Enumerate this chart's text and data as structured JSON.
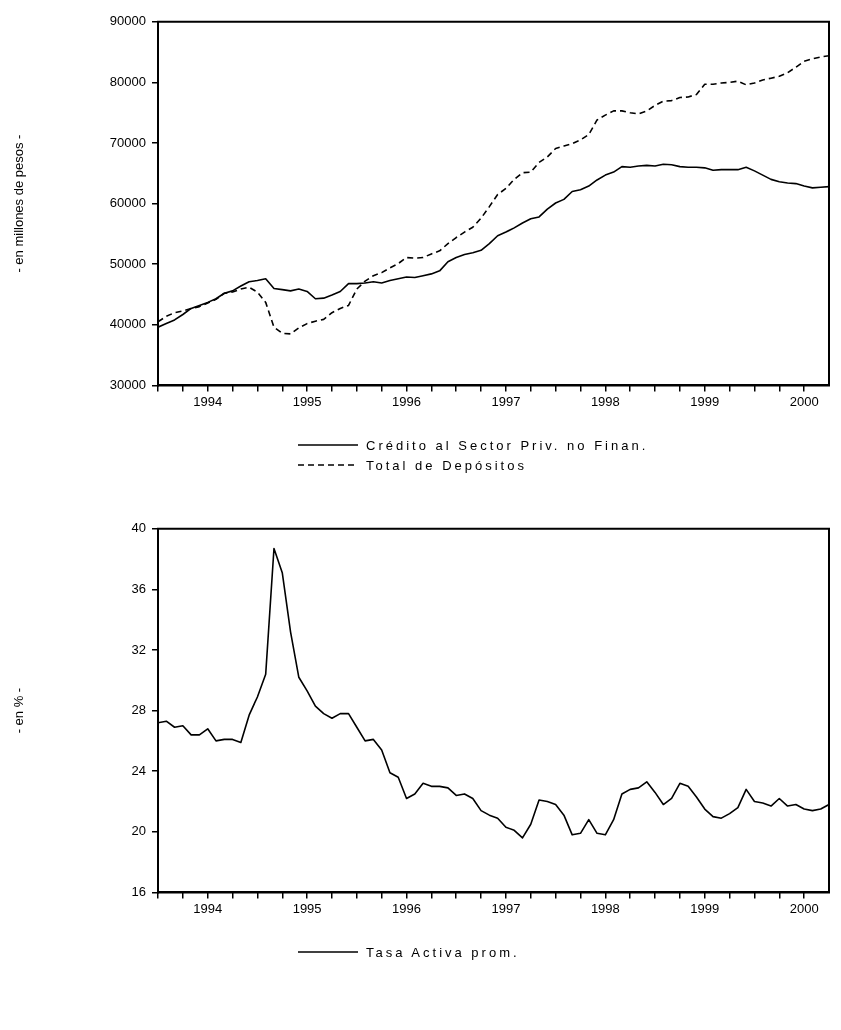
{
  "chart_data": [
    {
      "type": "line",
      "ylabel": "- en millones de pesos -",
      "legend": "bottom",
      "x": [
        "1994-01",
        "1994-02",
        "1994-03",
        "1994-04",
        "1994-05",
        "1994-06",
        "1994-07",
        "1994-08",
        "1994-09",
        "1994-10",
        "1994-11",
        "1994-12",
        "1995-01",
        "1995-02",
        "1995-03",
        "1995-04",
        "1995-05",
        "1995-06",
        "1995-07",
        "1995-08",
        "1995-09",
        "1995-10",
        "1995-11",
        "1995-12",
        "1996-01",
        "1996-02",
        "1996-03",
        "1996-04",
        "1996-05",
        "1996-06",
        "1996-07",
        "1996-08",
        "1996-09",
        "1996-10",
        "1996-11",
        "1996-12",
        "1997-01",
        "1997-02",
        "1997-03",
        "1997-04",
        "1997-05",
        "1997-06",
        "1997-07",
        "1997-08",
        "1997-09",
        "1997-10",
        "1997-11",
        "1997-12",
        "1998-01",
        "1998-02",
        "1998-03",
        "1998-04",
        "1998-05",
        "1998-06",
        "1998-07",
        "1998-08",
        "1998-09",
        "1998-10",
        "1998-11",
        "1998-12",
        "1999-01",
        "1999-02",
        "1999-03",
        "1999-04",
        "1999-05",
        "1999-06",
        "1999-07",
        "1999-08",
        "1999-09",
        "1999-10",
        "1999-11",
        "1999-12",
        "2000-01",
        "2000-02",
        "2000-03",
        "2000-04",
        "2000-05",
        "2000-06",
        "2000-07",
        "2000-08",
        "2000-09",
        "2000-10"
      ],
      "series": [
        {
          "name": "Crédito al Sector Priv. no Finan.",
          "color": "#000000",
          "line_style": "solid",
          "values": [
            39600,
            40200,
            40800,
            41700,
            42700,
            43200,
            43700,
            44300,
            45200,
            45600,
            46400,
            47100,
            47300,
            47600,
            46000,
            45800,
            45600,
            45900,
            45500,
            44300,
            44400,
            44900,
            45500,
            46800,
            46800,
            46900,
            47100,
            46900,
            47300,
            47600,
            47900,
            47800,
            48100,
            48400,
            48900,
            50400,
            51100,
            51600,
            51900,
            52300,
            53400,
            54700,
            55300,
            56000,
            56800,
            57500,
            57800,
            59100,
            60100,
            60700,
            62000,
            62300,
            62900,
            63900,
            64700,
            65200,
            66100,
            66000,
            66200,
            66300,
            66200,
            66500,
            66400,
            66100,
            66000,
            66000,
            65900,
            65500,
            65600,
            65600,
            65600,
            66000,
            65400,
            64700,
            64000,
            63600,
            63400,
            63300,
            62900,
            62600,
            62700,
            62800
          ]
        },
        {
          "name": "Total de Depósitos",
          "color": "#000000",
          "line_style": "dashed",
          "values": [
            40500,
            41400,
            42000,
            42300,
            42700,
            43000,
            43600,
            44200,
            45200,
            45400,
            45900,
            46200,
            45400,
            43700,
            39600,
            38600,
            38500,
            39500,
            40200,
            40600,
            40900,
            42000,
            42700,
            43200,
            45900,
            47200,
            48100,
            48600,
            49400,
            50100,
            51100,
            51000,
            51100,
            51700,
            52200,
            53400,
            54400,
            55300,
            56100,
            57600,
            59500,
            61500,
            62500,
            64000,
            65100,
            65200,
            66800,
            67700,
            69100,
            69500,
            69900,
            70500,
            71400,
            73800,
            74600,
            75300,
            75300,
            75000,
            74800,
            75300,
            76200,
            76900,
            77000,
            77500,
            77600,
            78000,
            79700,
            79700,
            79900,
            80000,
            80200,
            79600,
            79900,
            80400,
            80700,
            81000,
            81600,
            82500,
            83500,
            83900,
            84200,
            84400
          ]
        }
      ],
      "xlim": [
        "1994-01",
        "2000-10"
      ],
      "xticks": [
        {
          "value": "1994-01",
          "label": null
        },
        {
          "value": "1994-04",
          "label": null
        },
        {
          "value": "1994-07",
          "label": "1994"
        },
        {
          "value": "1994-10",
          "label": null
        },
        {
          "value": "1995-01",
          "label": null
        },
        {
          "value": "1995-04",
          "label": null
        },
        {
          "value": "1995-07",
          "label": "1995"
        },
        {
          "value": "1995-10",
          "label": null
        },
        {
          "value": "1996-01",
          "label": null
        },
        {
          "value": "1996-04",
          "label": null
        },
        {
          "value": "1996-07",
          "label": "1996"
        },
        {
          "value": "1996-10",
          "label": null
        },
        {
          "value": "1997-01",
          "label": null
        },
        {
          "value": "1997-04",
          "label": null
        },
        {
          "value": "1997-07",
          "label": "1997"
        },
        {
          "value": "1997-10",
          "label": null
        },
        {
          "value": "1998-01",
          "label": null
        },
        {
          "value": "1998-04",
          "label": null
        },
        {
          "value": "1998-07",
          "label": "1998"
        },
        {
          "value": "1998-10",
          "label": null
        },
        {
          "value": "1999-01",
          "label": null
        },
        {
          "value": "1999-04",
          "label": null
        },
        {
          "value": "1999-07",
          "label": "1999"
        },
        {
          "value": "1999-10",
          "label": null
        },
        {
          "value": "2000-01",
          "label": null
        },
        {
          "value": "2000-04",
          "label": null
        },
        {
          "value": "2000-07",
          "label": "2000"
        }
      ],
      "ylim": [
        30000,
        90000
      ],
      "yticks": [
        30000,
        40000,
        50000,
        60000,
        70000,
        80000,
        90000
      ]
    },
    {
      "type": "line",
      "ylabel": "- en % -",
      "legend": "bottom",
      "x": [
        "1994-01",
        "1994-02",
        "1994-03",
        "1994-04",
        "1994-05",
        "1994-06",
        "1994-07",
        "1994-08",
        "1994-09",
        "1994-10",
        "1994-11",
        "1994-12",
        "1995-01",
        "1995-02",
        "1995-03",
        "1995-04",
        "1995-05",
        "1995-06",
        "1995-07",
        "1995-08",
        "1995-09",
        "1995-10",
        "1995-11",
        "1995-12",
        "1996-01",
        "1996-02",
        "1996-03",
        "1996-04",
        "1996-05",
        "1996-06",
        "1996-07",
        "1996-08",
        "1996-09",
        "1996-10",
        "1996-11",
        "1996-12",
        "1997-01",
        "1997-02",
        "1997-03",
        "1997-04",
        "1997-05",
        "1997-06",
        "1997-07",
        "1997-08",
        "1997-09",
        "1997-10",
        "1997-11",
        "1997-12",
        "1998-01",
        "1998-02",
        "1998-03",
        "1998-04",
        "1998-05",
        "1998-06",
        "1998-07",
        "1998-08",
        "1998-09",
        "1998-10",
        "1998-11",
        "1998-12",
        "1999-01",
        "1999-02",
        "1999-03",
        "1999-04",
        "1999-05",
        "1999-06",
        "1999-07",
        "1999-08",
        "1999-09",
        "1999-10",
        "1999-11",
        "1999-12",
        "2000-01",
        "2000-02",
        "2000-03",
        "2000-04",
        "2000-05",
        "2000-06",
        "2000-07",
        "2000-08",
        "2000-09",
        "2000-10"
      ],
      "series": [
        {
          "name": "Tasa Activa prom.",
          "color": "#000000",
          "line_style": "solid",
          "values": [
            27.2,
            27.3,
            26.9,
            27.0,
            26.4,
            26.4,
            26.8,
            26.0,
            26.1,
            26.1,
            25.9,
            27.7,
            28.9,
            30.4,
            38.7,
            37.1,
            33.2,
            30.2,
            29.3,
            28.3,
            27.8,
            27.5,
            27.8,
            27.8,
            26.9,
            26.0,
            26.1,
            25.4,
            23.9,
            23.6,
            22.2,
            22.5,
            23.2,
            23.0,
            23.0,
            22.9,
            22.4,
            22.5,
            22.2,
            21.4,
            21.1,
            20.9,
            20.3,
            20.1,
            19.6,
            20.5,
            22.1,
            22.0,
            21.8,
            21.1,
            19.8,
            19.9,
            20.8,
            19.9,
            19.8,
            20.8,
            22.5,
            22.8,
            22.9,
            23.3,
            22.6,
            21.8,
            22.2,
            23.2,
            23.0,
            22.3,
            21.5,
            21.0,
            20.9,
            21.2,
            21.6,
            22.8,
            22.0,
            21.9,
            21.7,
            22.2,
            21.7,
            21.8,
            21.5,
            21.4,
            21.5,
            21.8
          ]
        }
      ],
      "xlim": [
        "1994-01",
        "2000-10"
      ],
      "xticks": [
        {
          "value": "1994-01",
          "label": null
        },
        {
          "value": "1994-04",
          "label": null
        },
        {
          "value": "1994-07",
          "label": "1994"
        },
        {
          "value": "1994-10",
          "label": null
        },
        {
          "value": "1995-01",
          "label": null
        },
        {
          "value": "1995-04",
          "label": null
        },
        {
          "value": "1995-07",
          "label": "1995"
        },
        {
          "value": "1995-10",
          "label": null
        },
        {
          "value": "1996-01",
          "label": null
        },
        {
          "value": "1996-04",
          "label": null
        },
        {
          "value": "1996-07",
          "label": "1996"
        },
        {
          "value": "1996-10",
          "label": null
        },
        {
          "value": "1997-01",
          "label": null
        },
        {
          "value": "1997-04",
          "label": null
        },
        {
          "value": "1997-07",
          "label": "1997"
        },
        {
          "value": "1997-10",
          "label": null
        },
        {
          "value": "1998-01",
          "label": null
        },
        {
          "value": "1998-04",
          "label": null
        },
        {
          "value": "1998-07",
          "label": "1998"
        },
        {
          "value": "1998-10",
          "label": null
        },
        {
          "value": "1999-01",
          "label": null
        },
        {
          "value": "1999-04",
          "label": null
        },
        {
          "value": "1999-07",
          "label": "1999"
        },
        {
          "value": "1999-10",
          "label": null
        },
        {
          "value": "2000-01",
          "label": null
        },
        {
          "value": "2000-04",
          "label": null
        },
        {
          "value": "2000-07",
          "label": "2000"
        }
      ],
      "ylim": [
        16,
        40
      ],
      "yticks": [
        16,
        20,
        24,
        28,
        32,
        36,
        40
      ]
    }
  ]
}
